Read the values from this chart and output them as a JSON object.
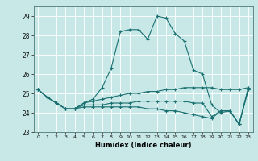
{
  "title": "",
  "xlabel": "Humidex (Indice chaleur)",
  "background_color": "#c8e8e8",
  "grid_color": "#ffffff",
  "line_color": "#1a7070",
  "xlim": [
    -0.5,
    23.5
  ],
  "ylim": [
    23,
    29.5
  ],
  "yticks": [
    23,
    24,
    25,
    26,
    27,
    28,
    29
  ],
  "xticks": [
    0,
    1,
    2,
    3,
    4,
    5,
    6,
    7,
    8,
    9,
    10,
    11,
    12,
    13,
    14,
    15,
    16,
    17,
    18,
    19,
    20,
    21,
    22,
    23
  ],
  "series": [
    [
      25.2,
      24.8,
      24.5,
      24.2,
      24.2,
      24.5,
      24.7,
      25.3,
      26.3,
      28.2,
      28.3,
      28.3,
      27.8,
      29.0,
      28.9,
      28.1,
      27.7,
      26.2,
      26.0,
      24.4,
      24.0,
      24.1,
      23.4,
      25.3
    ],
    [
      25.2,
      24.8,
      24.5,
      24.2,
      24.2,
      24.5,
      24.6,
      24.7,
      24.8,
      24.9,
      25.0,
      25.0,
      25.1,
      25.1,
      25.2,
      25.2,
      25.3,
      25.3,
      25.3,
      25.3,
      25.2,
      25.2,
      25.2,
      25.3
    ],
    [
      25.2,
      24.8,
      24.5,
      24.2,
      24.2,
      24.4,
      24.4,
      24.4,
      24.5,
      24.5,
      24.5,
      24.6,
      24.6,
      24.6,
      24.6,
      24.6,
      24.6,
      24.5,
      24.5,
      23.8,
      24.1,
      24.1,
      23.4,
      25.2
    ],
    [
      25.2,
      24.8,
      24.5,
      24.2,
      24.2,
      24.3,
      24.3,
      24.3,
      24.3,
      24.3,
      24.3,
      24.3,
      24.2,
      24.2,
      24.1,
      24.1,
      24.0,
      23.9,
      23.8,
      23.7,
      24.1,
      24.1,
      23.4,
      25.2
    ]
  ]
}
